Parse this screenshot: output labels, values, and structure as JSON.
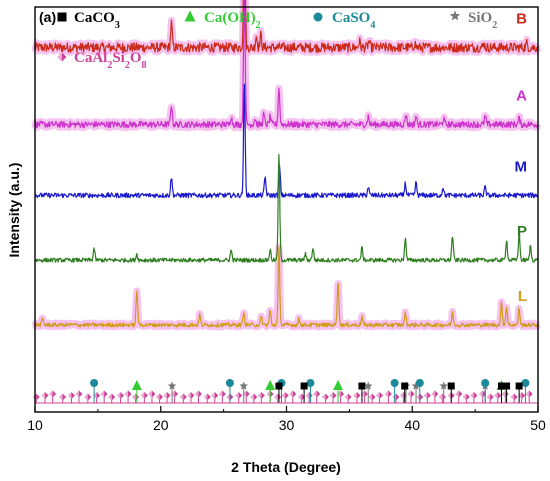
{
  "panel_label": "(a)",
  "colors": {
    "B": "#cc2a1a",
    "A": "#cc33cc",
    "M": "#1a1acc",
    "P": "#2e7d1f",
    "L": "#d19a1a",
    "halo": "#f4b8ef",
    "CaCO3": "#000000",
    "CaOH2": "#33cc33",
    "CaSO4": "#1a8a99",
    "SiO2": "#777777",
    "CaAl2Si2O8": "#d0409a"
  },
  "chart_data": {
    "type": "line",
    "xlabel": "2 Theta (Degree)",
    "ylabel": "Intensity (a.u.)",
    "xlim": [
      10,
      50
    ],
    "xticks": [
      10,
      20,
      30,
      40,
      50
    ],
    "yticks_shown": false,
    "legend": [
      {
        "key": "CaCO3",
        "label_main": "CaCO",
        "label_sub": "3",
        "marker": "square"
      },
      {
        "key": "CaOH2",
        "label_main": "Ca(OH)",
        "label_sub": "2",
        "marker": "triangle"
      },
      {
        "key": "CaSO4",
        "label_main": "CaSO",
        "label_sub": "4",
        "marker": "circle"
      },
      {
        "key": "SiO2",
        "label_main": "SiO",
        "label_sub": "2",
        "marker": "star"
      },
      {
        "key": "CaAl2Si2O8",
        "label_parts": [
          "CaAl",
          "2",
          "Si",
          "2",
          "O",
          "8"
        ],
        "marker": "diamond"
      }
    ],
    "series": [
      {
        "name": "B",
        "baseline": 0.9,
        "noise": 0.012,
        "halo": true,
        "peaks": [
          [
            20.85,
            0.06
          ],
          [
            26.65,
            0.32
          ],
          [
            27.6,
            0.03
          ],
          [
            27.95,
            0.03
          ],
          [
            35.8,
            0.015
          ],
          [
            36.55,
            0.015
          ],
          [
            40.2,
            0.01
          ],
          [
            45.7,
            0.01
          ],
          [
            49.1,
            0.01
          ]
        ]
      },
      {
        "name": "A",
        "baseline": 0.71,
        "noise": 0.008,
        "halo": true,
        "peaks": [
          [
            20.85,
            0.05
          ],
          [
            25.6,
            0.02
          ],
          [
            26.65,
            0.33
          ],
          [
            27.5,
            0.015
          ],
          [
            28.2,
            0.025
          ],
          [
            28.7,
            0.02
          ],
          [
            29.4,
            0.09
          ],
          [
            36.5,
            0.02
          ],
          [
            39.5,
            0.025
          ],
          [
            40.3,
            0.02
          ],
          [
            42.5,
            0.015
          ],
          [
            45.8,
            0.02
          ],
          [
            48.5,
            0.015
          ]
        ]
      },
      {
        "name": "M",
        "baseline": 0.535,
        "noise": 0.006,
        "halo": false,
        "peaks": [
          [
            20.85,
            0.045
          ],
          [
            26.65,
            0.27
          ],
          [
            28.3,
            0.045
          ],
          [
            29.45,
            0.07
          ],
          [
            36.5,
            0.02
          ],
          [
            39.45,
            0.03
          ],
          [
            40.3,
            0.03
          ],
          [
            42.45,
            0.02
          ],
          [
            45.8,
            0.02
          ],
          [
            50.1,
            0.03
          ]
        ]
      },
      {
        "name": "P",
        "baseline": 0.375,
        "noise": 0.005,
        "halo": false,
        "peaks": [
          [
            14.7,
            0.03
          ],
          [
            18.1,
            0.015
          ],
          [
            25.6,
            0.025
          ],
          [
            28.7,
            0.025
          ],
          [
            29.4,
            0.26
          ],
          [
            31.5,
            0.015
          ],
          [
            32.1,
            0.03
          ],
          [
            36.0,
            0.03
          ],
          [
            39.45,
            0.055
          ],
          [
            43.2,
            0.06
          ],
          [
            47.5,
            0.05
          ],
          [
            48.5,
            0.065
          ],
          [
            49.4,
            0.035
          ]
        ]
      },
      {
        "name": "L",
        "baseline": 0.215,
        "noise": 0.005,
        "halo": true,
        "peaks": [
          [
            10.6,
            0.015
          ],
          [
            18.1,
            0.085
          ],
          [
            23.1,
            0.025
          ],
          [
            26.6,
            0.03
          ],
          [
            28.0,
            0.02
          ],
          [
            28.7,
            0.035
          ],
          [
            29.4,
            0.19
          ],
          [
            31.0,
            0.015
          ],
          [
            34.1,
            0.11
          ],
          [
            36.0,
            0.02
          ],
          [
            39.45,
            0.03
          ],
          [
            43.2,
            0.03
          ],
          [
            47.1,
            0.055
          ],
          [
            47.5,
            0.045
          ],
          [
            48.5,
            0.04
          ]
        ]
      }
    ],
    "reference_markers": {
      "CaCO3": [
        29.4,
        31.4,
        36.0,
        39.4,
        43.1,
        47.1,
        47.5,
        48.5
      ],
      "CaOH2": [
        18.1,
        28.7,
        34.1,
        47.1
      ],
      "CaSO4": [
        14.7,
        25.5,
        29.6,
        31.9,
        38.6,
        40.6,
        45.8,
        49.0
      ],
      "SiO2": [
        20.9,
        26.6,
        36.5,
        39.5,
        40.3,
        42.5,
        45.8
      ],
      "CaAl2Si2O8": [
        10.1,
        10.8,
        11.4,
        12.2,
        12.9,
        13.5,
        14.2,
        14.9,
        15.5,
        16.1,
        16.8,
        17.4,
        18.0,
        18.7,
        19.3,
        19.9,
        20.5,
        21.1,
        21.8,
        22.4,
        23.0,
        23.7,
        24.3,
        24.9,
        25.5,
        26.2,
        26.8,
        27.4,
        28.0,
        28.7,
        29.3,
        29.9,
        30.5,
        31.2,
        31.8,
        32.4,
        33.1,
        33.7,
        34.3,
        34.9,
        35.6,
        36.2,
        36.8,
        37.4,
        38.1,
        38.7,
        39.3,
        39.9,
        40.6,
        41.2,
        41.8,
        42.4,
        43.1,
        43.7,
        44.3,
        44.9,
        45.6,
        46.2,
        46.8,
        47.4,
        48.1,
        48.7,
        49.3
      ]
    }
  }
}
